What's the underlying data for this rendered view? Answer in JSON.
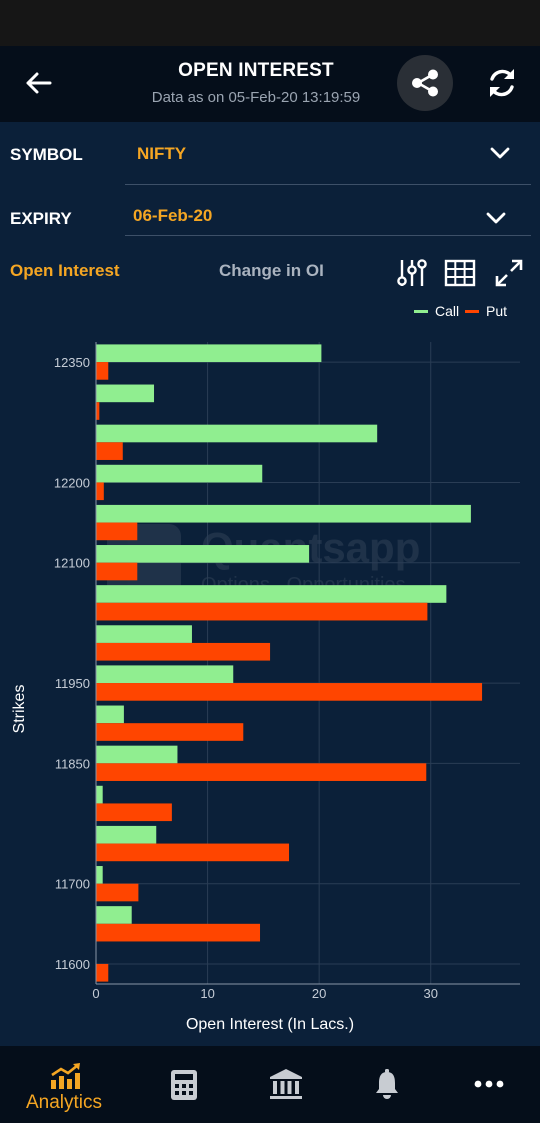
{
  "header": {
    "title": "OPEN INTEREST",
    "subtitle": "Data as on 05-Feb-20 13:19:59"
  },
  "filters": {
    "symbol_label": "SYMBOL",
    "symbol_value": "NIFTY",
    "expiry_label": "EXPIRY",
    "expiry_value": "06-Feb-20"
  },
  "tabs": [
    {
      "label": "Open Interest",
      "active": true
    },
    {
      "label": "Change in OI",
      "active": false
    }
  ],
  "icons": {
    "back": "arrow-left-icon",
    "share": "share-icon",
    "refresh": "refresh-icon",
    "filter": "sliders-icon",
    "table": "table-grid-icon",
    "expand": "expand-icon",
    "dropdown": "chevron-down-icon"
  },
  "watermark": {
    "name": "Quantsapp",
    "tagline": "Options . Opportunities"
  },
  "colors": {
    "accent": "#f5a623",
    "call": "#90ee90",
    "put": "#ff4500",
    "background": "#0b2039",
    "bar_dark": "#050e1a"
  },
  "chart_data": {
    "type": "bar",
    "orientation": "horizontal",
    "xlabel": "Open Interest (In Lacs.)",
    "ylabel": "Strikes",
    "xlim": [
      0,
      38
    ],
    "xticks": [
      0,
      10,
      20,
      30
    ],
    "ytick_labels": [
      "12350",
      "12200",
      "12100",
      "11950",
      "11850",
      "11700",
      "11600"
    ],
    "legend": {
      "placement": "top-right",
      "entries": [
        "Call",
        "Put"
      ]
    },
    "grid": true,
    "categories": [
      "12350",
      "12300",
      "12250",
      "12200",
      "12150",
      "12100",
      "12050",
      "12000",
      "11950",
      "11900",
      "11850",
      "11800",
      "11750",
      "11700",
      "11650",
      "11600"
    ],
    "series": [
      {
        "name": "Call",
        "values": [
          20.2,
          5.2,
          25.2,
          14.9,
          33.6,
          19.1,
          31.4,
          8.6,
          12.3,
          2.5,
          7.3,
          0.6,
          5.4,
          0.6,
          3.2,
          0
        ]
      },
      {
        "name": "Put",
        "values": [
          1.1,
          0.3,
          2.4,
          0.7,
          3.7,
          3.7,
          29.7,
          15.6,
          34.6,
          13.2,
          29.6,
          6.8,
          17.3,
          3.8,
          14.7,
          1.1
        ]
      }
    ]
  },
  "bottom_nav": [
    {
      "label": "Analytics",
      "icon": "analytics-chart-icon",
      "active": true
    },
    {
      "label": "",
      "icon": "calculator-icon",
      "active": false
    },
    {
      "label": "",
      "icon": "bank-icon",
      "active": false
    },
    {
      "label": "",
      "icon": "bell-icon",
      "active": false
    },
    {
      "label": "",
      "icon": "more-dots-icon",
      "active": false
    }
  ]
}
